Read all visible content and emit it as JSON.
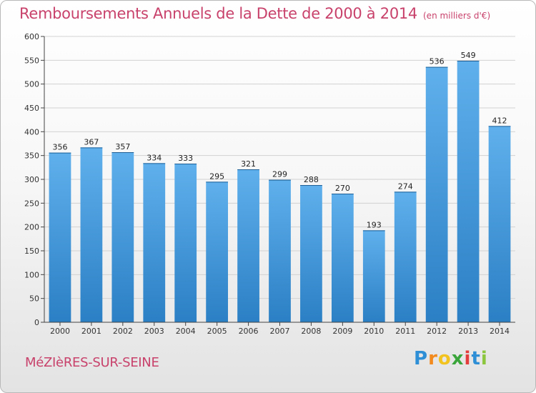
{
  "header": {
    "title": "Remboursements Annuels de la Dette de 2000 à 2014",
    "unit": "(en milliers d'€)"
  },
  "footer": {
    "commune": "MéZIèRES-SUR-SEINE"
  },
  "logo": {
    "letters": [
      "P",
      "r",
      "o",
      "x",
      "i",
      "t",
      "i"
    ],
    "colors": [
      "#2e8fd6",
      "#f28a1e",
      "#f2c21e",
      "#3aa53a",
      "#e33d3d",
      "#2e8fd6",
      "#8cc63f"
    ]
  },
  "colors": {
    "bar_top": "#5fb0ec",
    "bar_bottom": "#2b7fc4",
    "title": "#c8426c",
    "grid": "#d2d2d2"
  },
  "chart_data": {
    "type": "bar",
    "title": "Remboursements Annuels de la Dette de 2000 à 2014",
    "xlabel": "",
    "ylabel": "",
    "categories": [
      "2000",
      "2001",
      "2002",
      "2003",
      "2004",
      "2005",
      "2006",
      "2007",
      "2008",
      "2009",
      "2010",
      "2011",
      "2012",
      "2013",
      "2014"
    ],
    "values": [
      356,
      367,
      357,
      334,
      333,
      295,
      321,
      299,
      288,
      270,
      193,
      274,
      536,
      549,
      412
    ],
    "ylim": [
      0,
      600
    ],
    "yticks": [
      0,
      50,
      100,
      150,
      200,
      250,
      300,
      350,
      400,
      450,
      500,
      550,
      600
    ],
    "grid": true
  }
}
